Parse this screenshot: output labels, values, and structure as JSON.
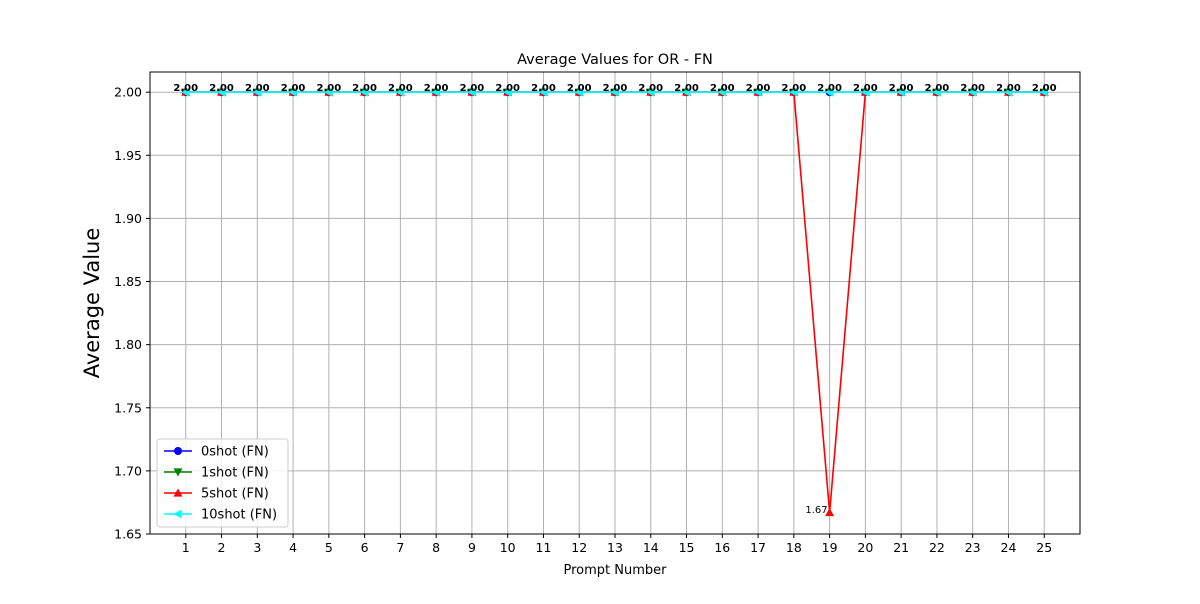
{
  "chart_data": {
    "type": "line",
    "title": "Average Values for OR - FN",
    "xlabel": "Prompt Number",
    "ylabel": "Average Value",
    "x": [
      1,
      2,
      3,
      4,
      5,
      6,
      7,
      8,
      9,
      10,
      11,
      12,
      13,
      14,
      15,
      16,
      17,
      18,
      19,
      20,
      21,
      22,
      23,
      24,
      25
    ],
    "xlim": [
      0,
      26
    ],
    "ylim": [
      1.65,
      2.016
    ],
    "yticks": [
      "1.65",
      "1.70",
      "1.75",
      "1.80",
      "1.85",
      "1.90",
      "1.95",
      "2.00"
    ],
    "grid": true,
    "legend_position": "lower-left",
    "series": [
      {
        "name": "0shot (FN)",
        "color": "#0000ff",
        "marker": "circle",
        "values": [
          2,
          2,
          2,
          2,
          2,
          2,
          2,
          2,
          2,
          2,
          2,
          2,
          2,
          2,
          2,
          2,
          2,
          2,
          2,
          2,
          2,
          2,
          2,
          2,
          2
        ]
      },
      {
        "name": "1shot (FN)",
        "color": "#008000",
        "marker": "triangle-down",
        "values": [
          2,
          2,
          2,
          2,
          2,
          2,
          2,
          2,
          2,
          2,
          2,
          2,
          2,
          2,
          2,
          2,
          2,
          2,
          2,
          2,
          2,
          2,
          2,
          2,
          2
        ]
      },
      {
        "name": "5shot (FN)",
        "color": "#ff0000",
        "marker": "triangle-up",
        "values": [
          2,
          2,
          2,
          2,
          2,
          2,
          2,
          2,
          2,
          2,
          2,
          2,
          2,
          2,
          2,
          2,
          2,
          2,
          1.667,
          2,
          2,
          2,
          2,
          2,
          2
        ]
      },
      {
        "name": "10shot (FN)",
        "color": "#00ffff",
        "marker": "triangle-left",
        "values": [
          2,
          2,
          2,
          2,
          2,
          2,
          2,
          2,
          2,
          2,
          2,
          2,
          2,
          2,
          2,
          2,
          2,
          2,
          2,
          2,
          2,
          2,
          2,
          2,
          2
        ]
      }
    ],
    "point_labels": [
      "2.00",
      "2.00",
      "2.00",
      "2.00",
      "2.00",
      "2.00",
      "2.00",
      "2.00",
      "2.00",
      "2.00",
      "2.00",
      "2.00",
      "2.00",
      "2.00",
      "2.00",
      "2.00",
      "2.00",
      "2.00",
      "2.00",
      "2.00",
      "2.00",
      "2.00",
      "2.00",
      "2.00",
      "2.00"
    ],
    "annotations": [
      {
        "x": 19,
        "y": 1.67,
        "text": "1.67"
      }
    ]
  }
}
